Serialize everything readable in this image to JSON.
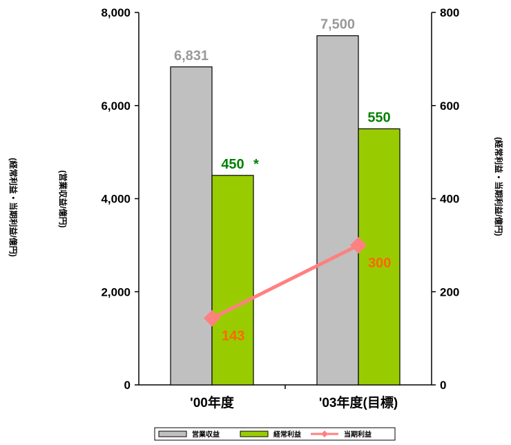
{
  "chart_data": {
    "type": "bar",
    "categories": [
      "'00年度",
      "'03年度(目標)"
    ],
    "series": [
      {
        "name": "営業収益",
        "axis": "left",
        "kind": "bar",
        "values": [
          6831,
          7500
        ],
        "labels": [
          "6,831",
          "7,500"
        ],
        "color": "#c0c0c0",
        "label_color": "#999999"
      },
      {
        "name": "経常利益",
        "axis": "right",
        "kind": "bar",
        "values": [
          450,
          550
        ],
        "labels": [
          "450",
          "550"
        ],
        "color": "#99cc00",
        "label_color": "#008000"
      },
      {
        "name": "当期利益",
        "axis": "right",
        "kind": "line",
        "values": [
          143,
          300
        ],
        "labels": [
          "143",
          "300"
        ],
        "color": "#ff8080",
        "label_color": "#ff6600"
      }
    ],
    "annotation": "*",
    "y_left": {
      "label": "(営業収益/億円)",
      "ticks": [
        "0",
        "2,000",
        "4,000",
        "6,000",
        "8,000"
      ],
      "range": [
        0,
        8000
      ]
    },
    "y_right": {
      "label": "(経常利益・当期利益/億円)",
      "ticks": [
        "0",
        "200",
        "400",
        "600",
        "800"
      ],
      "range": [
        0,
        800
      ]
    },
    "y_left_outer_label": "(経常利益・当期利益/億円)",
    "legend": [
      "営業収益",
      "経常利益",
      "当期利益"
    ],
    "legend_position": "bottom",
    "grid": false
  }
}
